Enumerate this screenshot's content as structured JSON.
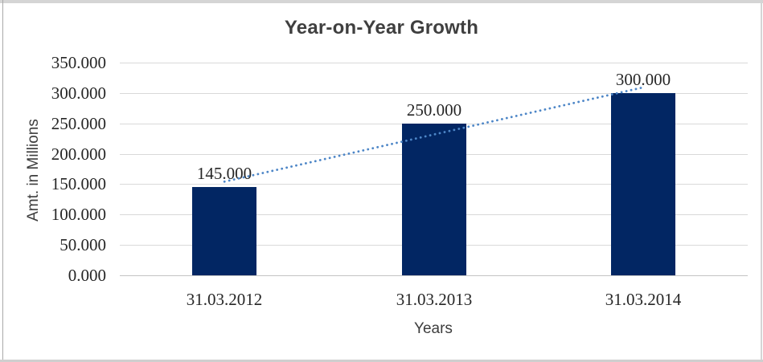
{
  "frame": {
    "background": "#ffffff",
    "border_gray": "#d5d5d5",
    "bottom_gray": "#cfcfcf",
    "left_edge_gray": "#a9a9a9"
  },
  "chart_data": {
    "type": "bar",
    "title": "Year-on-Year Growth",
    "categories": [
      "31.03.2012",
      "31.03.2013",
      "31.03.2014"
    ],
    "values": [
      145,
      250,
      300
    ],
    "data_labels": [
      "145.000",
      "250.000",
      "300.000"
    ],
    "bar_color": "#022663",
    "xlabel": "Years",
    "ylabel": "Amt. in Millions",
    "ylim": [
      0,
      350
    ],
    "y_tick_step": 50,
    "y_tick_labels": [
      "0.000",
      "50.000",
      "100.000",
      "150.000",
      "200.000",
      "250.000",
      "300.000",
      "350.000"
    ],
    "grid": true,
    "gridline_color": "#d9d9d9",
    "axis_line_color": "#c3c3c3",
    "legend": "none",
    "trendline": {
      "show": true,
      "fit": "linear",
      "style": "dotted",
      "color": "#4d86c7"
    },
    "text_colors": {
      "title": "#3f3f3f",
      "axis_titles": "#3d3d3d",
      "labels": "#262626"
    }
  }
}
